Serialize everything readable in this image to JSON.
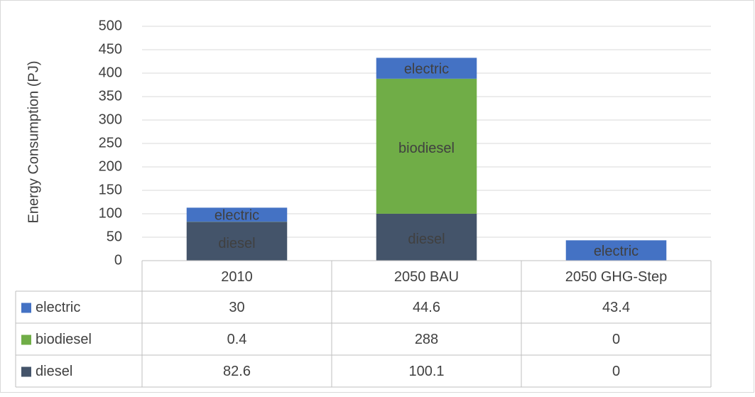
{
  "chart_data": {
    "type": "bar",
    "stacked": true,
    "y_label": "Energy Consumption (PJ)",
    "categories": [
      "2010",
      "2050 BAU",
      "2050 GHG-Step"
    ],
    "series": [
      {
        "name": "diesel",
        "color": "#44546a",
        "values": [
          82.6,
          100.1,
          0
        ]
      },
      {
        "name": "biodiesel",
        "color": "#70ad47",
        "values": [
          0.4,
          288,
          0
        ]
      },
      {
        "name": "electric",
        "color": "#4472c4",
        "values": [
          30,
          44.6,
          43.4
        ]
      }
    ],
    "ylim": [
      0,
      500
    ],
    "yticks": [
      0,
      50,
      100,
      150,
      200,
      250,
      300,
      350,
      400,
      450,
      500
    ],
    "grid": true,
    "data_table": true
  }
}
